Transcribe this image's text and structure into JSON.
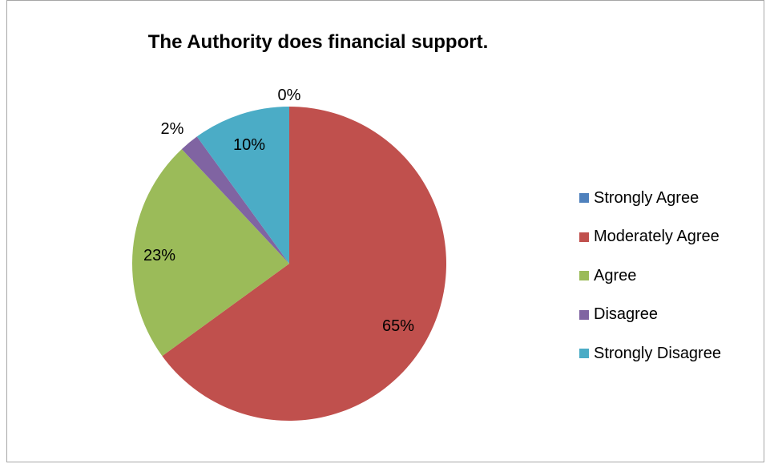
{
  "chart_data": {
    "type": "pie",
    "title": "The Authority does financial support.",
    "categories": [
      "Strongly Agree",
      "Moderately Agree",
      "Agree",
      "Disagree",
      "Strongly Disagree"
    ],
    "values": [
      0,
      65,
      23,
      2,
      10
    ],
    "data_labels": [
      "0%",
      "65%",
      "23%",
      "2%",
      "10%"
    ],
    "colors": [
      "#4f81bd",
      "#c0504d",
      "#9bbb59",
      "#8064a2",
      "#4bacc6"
    ],
    "legend_position": "right"
  }
}
